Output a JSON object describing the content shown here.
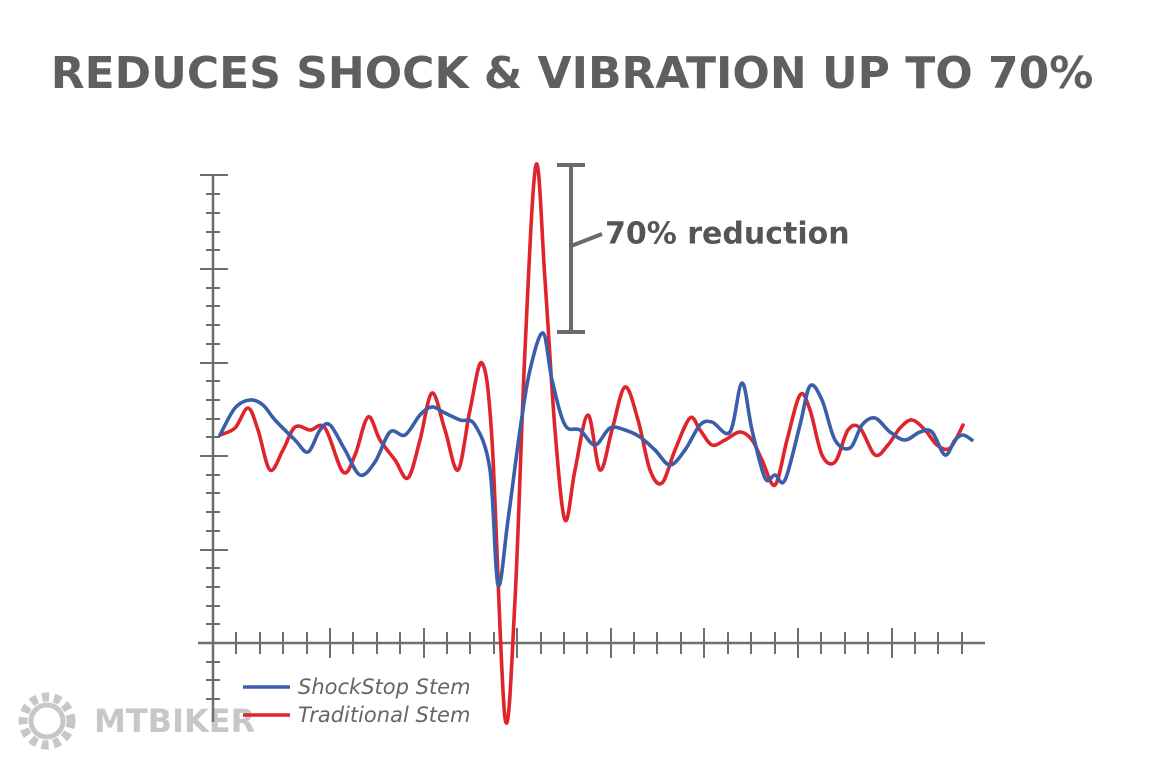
{
  "chart_data": {
    "type": "line",
    "title": "REDUCES SHOCK & VIBRATION UP TO 70%",
    "annotation": "70% reduction",
    "watermark": "MTBIKER",
    "xlim": [
      -13,
      772
    ],
    "ylim": [
      -80,
      480
    ],
    "xticks": [
      23,
      47,
      70,
      94,
      117,
      140,
      164,
      187,
      211,
      234,
      257,
      281,
      304,
      328,
      351,
      374,
      398,
      421,
      444,
      468,
      491,
      515,
      538,
      562,
      585,
      608,
      632,
      655,
      679,
      702,
      725,
      749
    ],
    "xticks_major": [
      117,
      211,
      304,
      398,
      491,
      585,
      679
    ],
    "yticks": [
      -56,
      -37,
      -19,
      19,
      37,
      56,
      75,
      112,
      131,
      150,
      168,
      206,
      224,
      243,
      262,
      299,
      318,
      337,
      355,
      393,
      411,
      430,
      449
    ],
    "yticks_major": [
      0,
      93,
      187,
      280,
      374,
      468
    ],
    "series": [
      {
        "name": "ShockStop Stem",
        "color": "#3a5ea8",
        "x": [
          7,
          22,
          37,
          50,
          62,
          82,
          95,
          107,
          117,
          132,
          147,
          162,
          177,
          192,
          207,
          219,
          232,
          247,
          262,
          277,
          285,
          295,
          307,
          317,
          330,
          339,
          352,
          367,
          382,
          397,
          412,
          427,
          442,
          457,
          472,
          487,
          499,
          517,
          529,
          539,
          552,
          562,
          572,
          587,
          597,
          609,
          622,
          637,
          649,
          662,
          677,
          692,
          707,
          719,
          732,
          742,
          750,
          759
        ],
        "values": [
          208,
          235,
          243,
          238,
          223,
          203,
          191,
          213,
          218,
          193,
          168,
          181,
          211,
          208,
          228,
          236,
          230,
          223,
          218,
          173,
          58,
          123,
          213,
          273,
          310,
          263,
          218,
          213,
          198,
          215,
          213,
          206,
          193,
          178,
          193,
          218,
          221,
          211,
          260,
          213,
          165,
          168,
          163,
          218,
          257,
          243,
          203,
          195,
          218,
          225,
          211,
          203,
          211,
          211,
          188,
          203,
          208,
          203
        ]
      },
      {
        "name": "Traditional Stem",
        "color": "#e0242c",
        "x": [
          7,
          22,
          35,
          45,
          57,
          70,
          82,
          97,
          112,
          130,
          142,
          155,
          167,
          182,
          195,
          207,
          219,
          232,
          245,
          257,
          269,
          279,
          292,
          302,
          312,
          323,
          332,
          342,
          352,
          362,
          375,
          387,
          399,
          412,
          425,
          437,
          449,
          462,
          477,
          487,
          499,
          512,
          527,
          539,
          549,
          562,
          574,
          587,
          597,
          609,
          622,
          635,
          647,
          662,
          675,
          687,
          699,
          712,
          724,
          737,
          750
        ],
        "values": [
          208,
          215,
          235,
          213,
          173,
          193,
          216,
          213,
          215,
          171,
          188,
          226,
          203,
          183,
          165,
          203,
          250,
          213,
          173,
          233,
          280,
          203,
          -75,
          43,
          293,
          478,
          363,
          213,
          123,
          173,
          228,
          173,
          213,
          256,
          223,
          173,
          160,
          193,
          225,
          213,
          198,
          203,
          211,
          203,
          183,
          158,
          203,
          248,
          233,
          188,
          181,
          213,
          215,
          188,
          198,
          215,
          223,
          213,
          198,
          195,
          218
        ]
      }
    ]
  }
}
